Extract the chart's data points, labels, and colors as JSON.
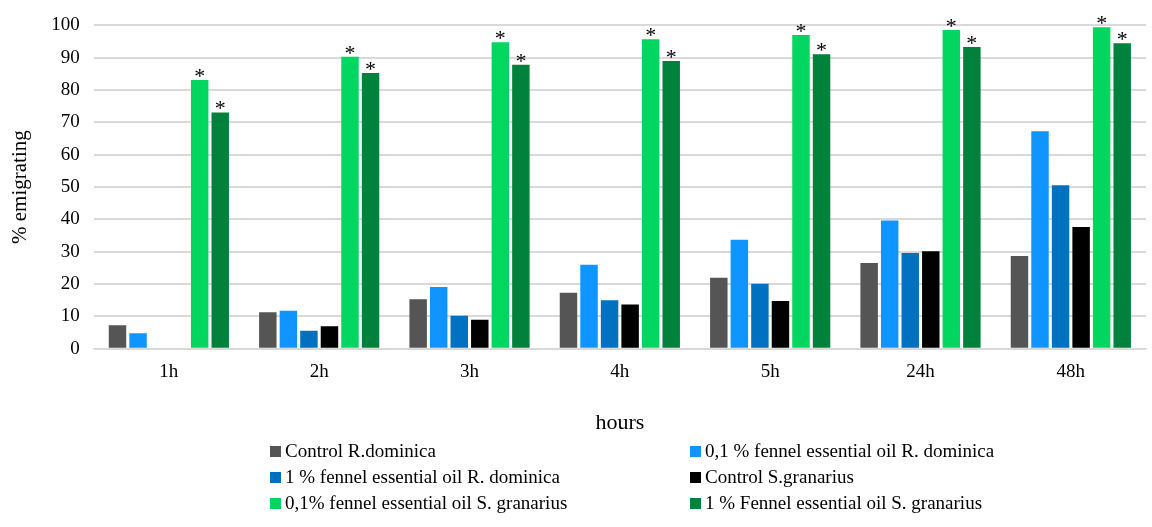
{
  "chart_data": {
    "type": "bar",
    "xlabel": "hours",
    "ylabel": "% emigrating",
    "categories": [
      "1h",
      "2h",
      "3h",
      "4h",
      "5h",
      "24h",
      "48h"
    ],
    "series": [
      {
        "name": "Control R.dominica",
        "color": "#555555",
        "values": [
          7.3,
          11.3,
          15.3,
          17.3,
          22.0,
          26.5,
          28.7
        ]
      },
      {
        "name": "0,1 % fennel essential oil R. dominica",
        "color": "#1094ff",
        "values": [
          4.8,
          11.8,
          19.1,
          26.0,
          33.7,
          39.7,
          67.3
        ]
      },
      {
        "name": "1 % fennel essential oil R. dominica",
        "color": "#0070c0",
        "values": [
          0,
          5.6,
          10.2,
          15.0,
          20.1,
          29.6,
          50.6
        ]
      },
      {
        "name": "Control S.granarius",
        "color": "#000000",
        "values": [
          0,
          7.0,
          9.0,
          13.7,
          14.8,
          30.2,
          37.7
        ]
      },
      {
        "name": "0,1% fennel essential oil S. granarius",
        "color": "#00d660",
        "values": [
          83.1,
          90.3,
          94.8,
          95.7,
          97.0,
          98.6,
          99.4
        ]
      },
      {
        "name": "1 % Fennel essential oil S. granarius",
        "color": "#00823c",
        "values": [
          73.1,
          85.3,
          87.8,
          89.0,
          91.1,
          93.3,
          94.5
        ]
      }
    ],
    "ylim": [
      0,
      100
    ],
    "yticks": [
      0,
      10,
      20,
      30,
      40,
      50,
      60,
      70,
      80,
      90,
      100
    ],
    "grid": "y",
    "legend": "bottom",
    "annotations": [
      "*",
      "*",
      "*",
      "*",
      "*",
      "*",
      "*",
      "*",
      "*",
      "*",
      "*",
      "*",
      "*",
      "*"
    ]
  }
}
